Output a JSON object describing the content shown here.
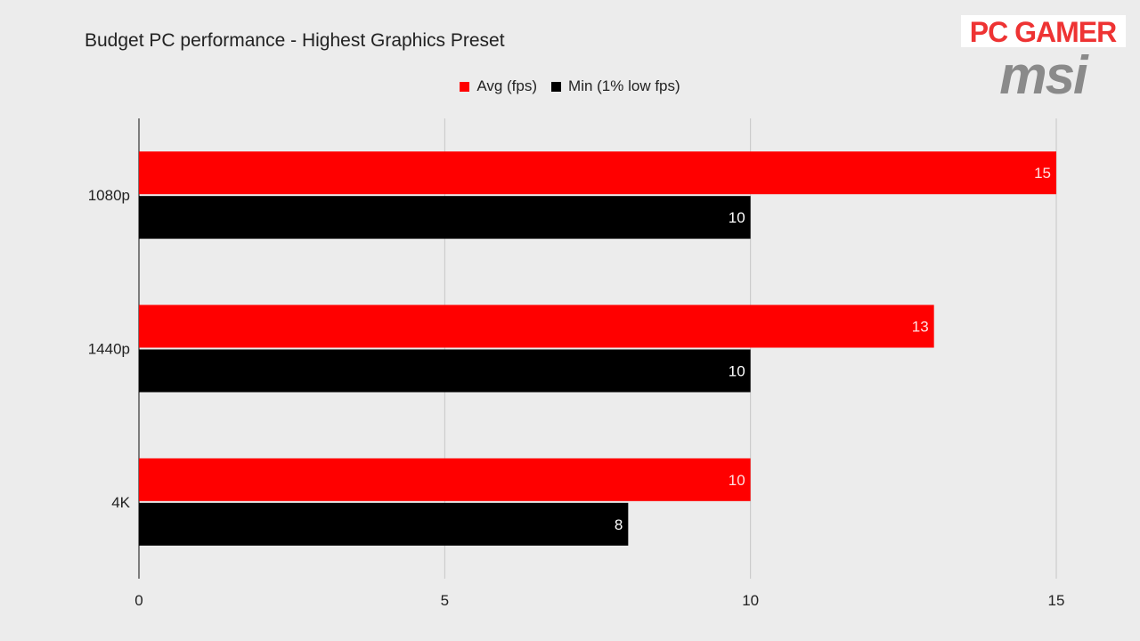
{
  "logo": {
    "brand_text": "PC GAMER",
    "partner_text": "msi"
  },
  "chart_data": {
    "type": "bar",
    "orientation": "horizontal",
    "title": "Budget PC performance - Highest Graphics Preset",
    "xlabel": "",
    "ylabel": "",
    "categories": [
      "1080p",
      "1440p",
      "4K"
    ],
    "series": [
      {
        "name": "Avg (fps)",
        "color": "#ff0000",
        "label_color": "#ffe0e0",
        "values": [
          15,
          13,
          10
        ]
      },
      {
        "name": "Min (1% low fps)",
        "color": "#000000",
        "label_color": "#ffffff",
        "values": [
          10,
          10,
          8
        ]
      }
    ],
    "xlim": [
      0,
      15
    ],
    "xticks": [
      "0",
      "5",
      "10",
      "15"
    ],
    "grid": true,
    "legend_position": "top-center"
  }
}
